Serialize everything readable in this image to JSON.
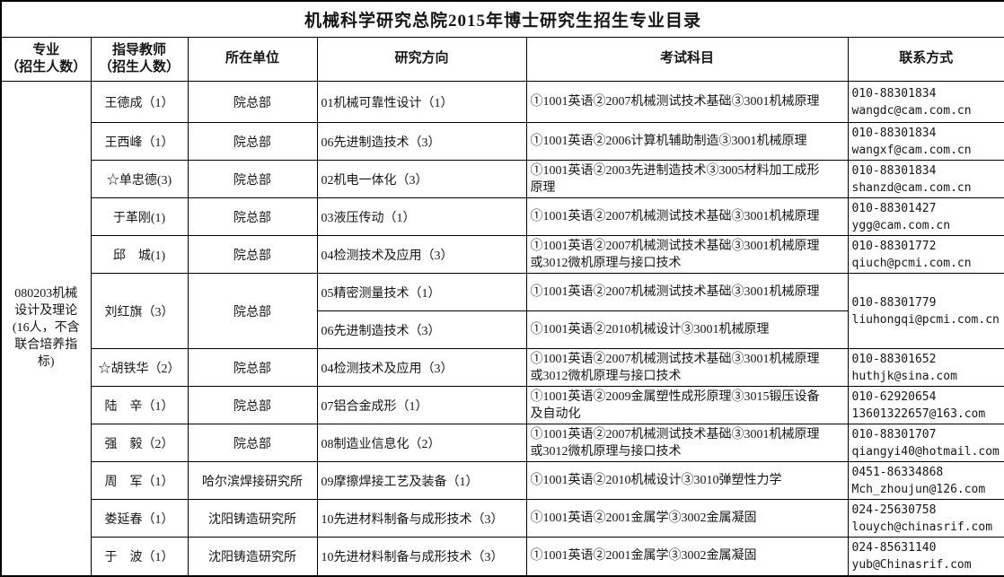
{
  "title": "机械科学研究总院2015年博士研究生招生专业目录",
  "columns": [
    "专业\n（招生人数）",
    "指导教师\n（招生人数）",
    "所在单位",
    "研究方向",
    "考试科目",
    "联系方式"
  ],
  "major": "080203机械\n设计及理论\n(16人，不含\n联合培养指\n标)",
  "rows": [
    {
      "teacher": "王德成（1）",
      "unit": "院总部",
      "direction": "01机械可靠性设计（1）",
      "exam": "①1001英语②2007机械测试技术基础③3001机械原理",
      "contact": "010-88301834\nwangdc@cam.com.cn"
    },
    {
      "teacher": "王西峰（1）",
      "unit": "院总部",
      "direction": "06先进制造技术（3）",
      "exam": "①1001英语②2006计算机辅助制造③3001机械原理",
      "contact": "010-88301834\nwangxf@cam.com.cn"
    },
    {
      "teacher": "☆单忠德(3)",
      "unit": "院总部",
      "direction": "02机电一体化（3）",
      "exam": "①1001英语②2003先进制造技术③3005材料加工成形\n原理",
      "contact": "010-88301834\nshanzd@cam.com.cn"
    },
    {
      "teacher": "于革刚(1)",
      "unit": "院总部",
      "direction": "03液压传动（1）",
      "exam": "①1001英语②2007机械测试技术基础③3001机械原理",
      "contact": "010-88301427\nygg@cam.com.cn"
    },
    {
      "teacher": "邱　城(1)",
      "unit": "院总部",
      "direction": "04检测技术及应用（3）",
      "exam": "①1001英语②2007机械测试技术基础③3001机械原理\n或3012微机原理与接口技术",
      "contact": "010-88301772\nqiuch@pcmi.com.cn"
    },
    {
      "span": 2,
      "teacher": "刘红旗（3）",
      "unit": "院总部",
      "direction": "05精密测量技术（1）",
      "exam": "①1001英语②2007机械测试技术基础③3001机械原理",
      "contact": "010-88301779\nliuhongqi@pcmi.com.cn"
    },
    {
      "direction": "06先进制造技术（3）",
      "exam": "①1001英语②2010机械设计③3001机械原理"
    },
    {
      "teacher": "☆胡铁华（2）",
      "unit": "院总部",
      "direction": "04检测技术及应用（3）",
      "exam": "①1001英语②2007机械测试技术基础③3001机械原理\n或3012微机原理与接口技术",
      "contact": "010-88301652\nhuthjk@sina.com"
    },
    {
      "teacher": "陆　辛（1）",
      "unit": "院总部",
      "direction": "07铝合金成形（1）",
      "exam": "①1001英语②2009金属塑性成形原理③3015锻压设备\n及自动化",
      "contact": "010-62920654\n13601322657@163.com"
    },
    {
      "teacher": "强　毅（2）",
      "unit": "院总部",
      "direction": "08制造业信息化（2）",
      "exam": "①1001英语②2007机械测试技术基础③3001机械原理\n或3012微机原理与接口技术",
      "contact": "010-88301707\nqiangyi40@hotmail.com"
    },
    {
      "teacher": "周　军（1）",
      "unit": "哈尔滨焊接研究所",
      "direction": "09摩擦焊接工艺及装备（1）",
      "exam": "①1001英语②2010机械设计③3010弹塑性力学",
      "contact": "0451-86334868\nMch_zhoujun@126.com"
    },
    {
      "teacher": "娄延春（1）",
      "unit": "沈阳铸造研究所",
      "direction": "10先进材料制备与成形技术（3）",
      "exam": "①1001英语②2001金属学③3002金属凝固",
      "contact": "024-25630758\nlouych@chinasrif.com"
    },
    {
      "teacher": "于　波（1）",
      "unit": "沈阳铸造研究所",
      "direction": "10先进材料制备与成形技术（3）",
      "exam": "①1001英语②2001金属学③3002金属凝固",
      "contact": "024-85631140\nyub@Chinasrif.com"
    }
  ]
}
